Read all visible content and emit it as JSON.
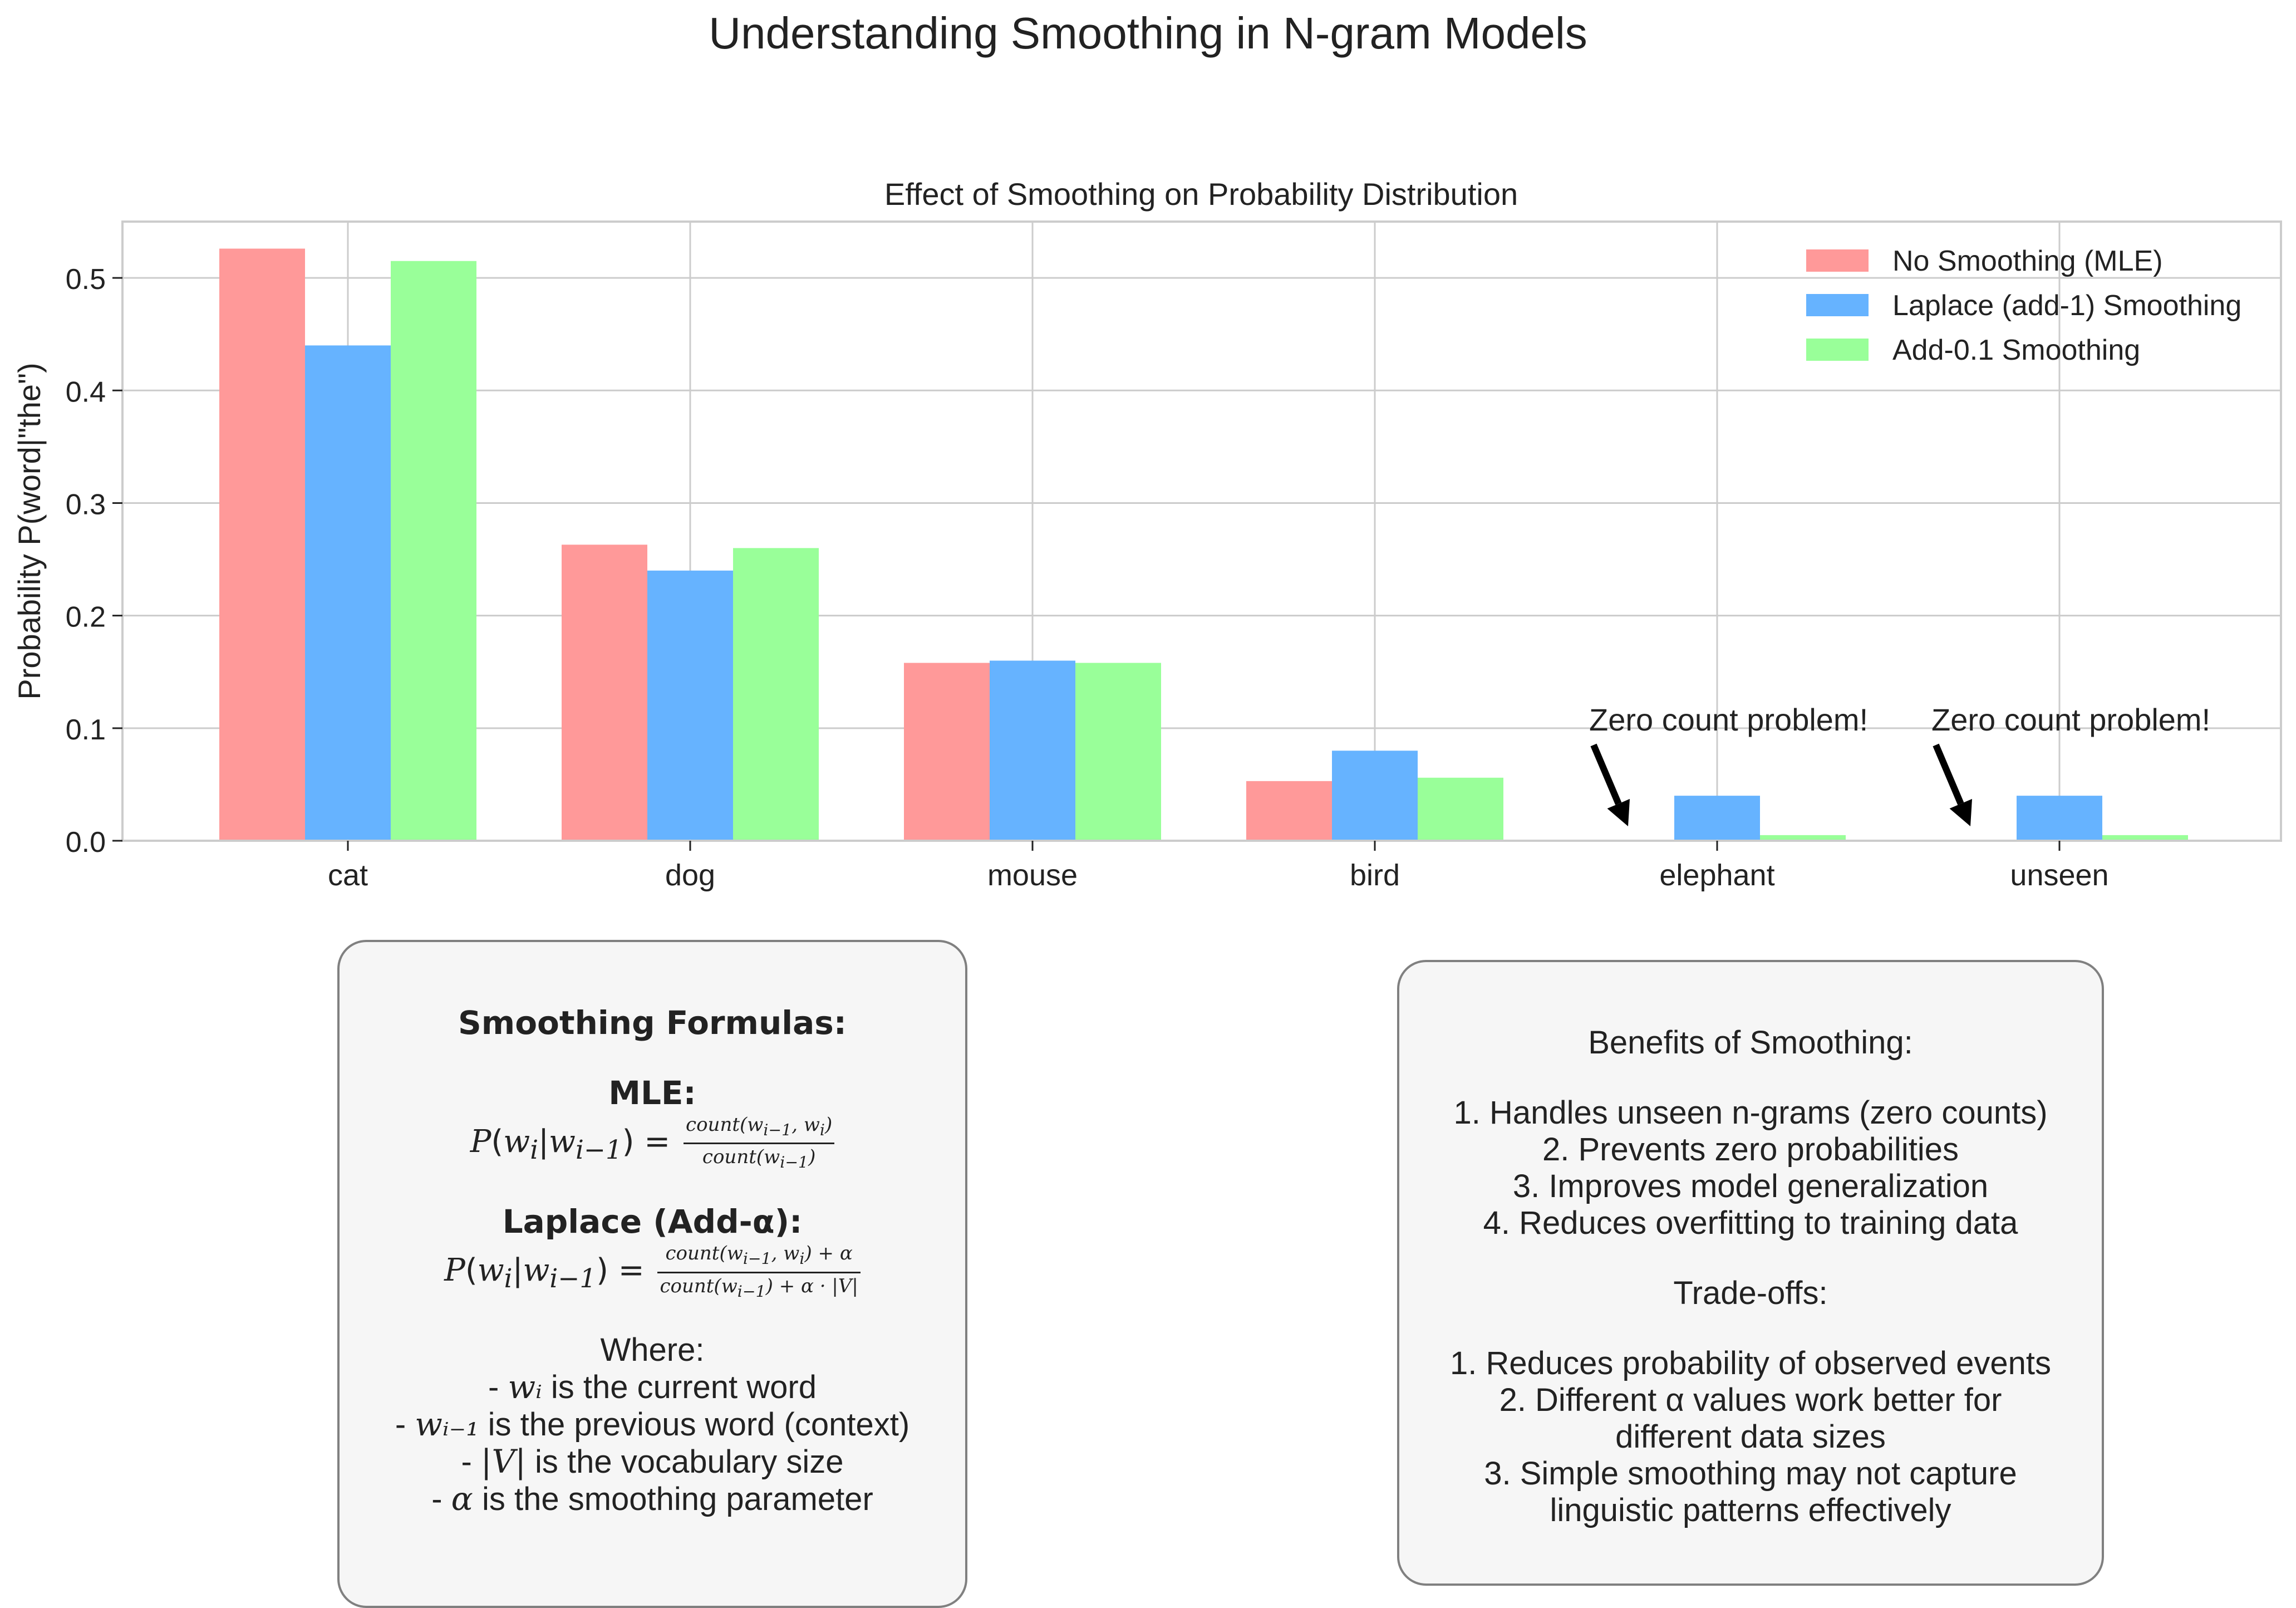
{
  "suptitle": "Understanding Smoothing in N-gram Models",
  "chart_data": {
    "type": "bar",
    "title": "Effect of Smoothing on Probability Distribution",
    "xlabel": "",
    "ylabel": "Probability P(word|\"the\")",
    "categories": [
      "cat",
      "dog",
      "mouse",
      "bird",
      "elephant",
      "unseen"
    ],
    "series": [
      {
        "name": "No Smoothing (MLE)",
        "color": "#ff9999",
        "values": [
          0.526,
          0.263,
          0.158,
          0.053,
          0.0,
          0.0
        ]
      },
      {
        "name": "Laplace (add-1) Smoothing",
        "color": "#66b3ff",
        "values": [
          0.44,
          0.24,
          0.16,
          0.08,
          0.04,
          0.04
        ]
      },
      {
        "name": "Add-0.1 Smoothing",
        "color": "#99ff99",
        "values": [
          0.515,
          0.26,
          0.158,
          0.056,
          0.005,
          0.005
        ]
      }
    ],
    "ylim": [
      0,
      0.55
    ],
    "yticks": [
      "0.0",
      "0.1",
      "0.2",
      "0.3",
      "0.4",
      "0.5"
    ],
    "grid": true,
    "legend_position": "top-right",
    "annotations": [
      {
        "text": "Zero count problem!",
        "category": "elephant"
      },
      {
        "text": "Zero count problem!",
        "category": "unseen"
      }
    ]
  },
  "formulas_panel": {
    "heading": "Smoothing Formulas:",
    "mle_heading": "MLE:",
    "laplace_heading": "Laplace (Add-α):",
    "where": "Where:",
    "notes": [
      {
        "pre": "- ",
        "sym": "wᵢ",
        "post": " is the current word"
      },
      {
        "pre": "- ",
        "sym": "wᵢ₋₁",
        "post": " is the previous word (context)"
      },
      {
        "pre": "- ",
        "sym": "|V|",
        "post": " is the vocabulary size"
      },
      {
        "pre": "- ",
        "sym": "α",
        "post": " is the smoothing parameter"
      }
    ]
  },
  "benefits_panel": {
    "heading": "Benefits of Smoothing:",
    "benefits": [
      "1. Handles unseen n-grams (zero counts)",
      "2. Prevents zero probabilities",
      "3. Improves model generalization",
      "4. Reduces overfitting to training data"
    ],
    "tradeoffs_heading": "Trade-offs:",
    "tradeoffs": [
      "1. Reduces probability of observed events",
      "2. Different α values work better for",
      "different data sizes",
      "3. Simple smoothing may not capture",
      "linguistic patterns effectively"
    ]
  }
}
